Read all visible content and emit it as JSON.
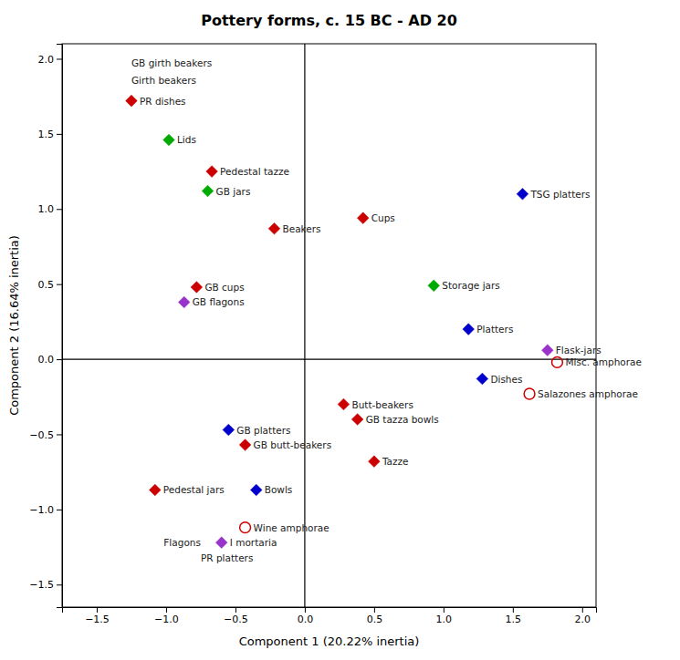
{
  "chart_data": {
    "type": "scatter",
    "title": "Pottery forms, c. 15 BC - AD 20",
    "xlabel": "Component 1 (20.22% inertia)",
    "ylabel": "Component 2 (16.64% inertia)",
    "xlim": [
      -1.75,
      2.1
    ],
    "ylim": [
      -1.65,
      2.1
    ],
    "xticks": [
      {
        "value": -1.5,
        "label": "−1.5"
      },
      {
        "value": -1.0,
        "label": "−1.0"
      },
      {
        "value": -0.5,
        "label": "−0.5"
      },
      {
        "value": 0.0,
        "label": "0.0"
      },
      {
        "value": 0.5,
        "label": "0.5"
      },
      {
        "value": 1.0,
        "label": "1.0"
      },
      {
        "value": 1.5,
        "label": "1.5"
      },
      {
        "value": 2.0,
        "label": "2.0"
      }
    ],
    "yticks": [
      {
        "value": -1.5,
        "label": "−1.5"
      },
      {
        "value": -1.0,
        "label": "−1.0"
      },
      {
        "value": -0.5,
        "label": "−0.5"
      },
      {
        "value": 0.0,
        "label": "0.0"
      },
      {
        "value": 0.5,
        "label": "0.5"
      },
      {
        "value": 1.0,
        "label": "1.0"
      },
      {
        "value": 1.5,
        "label": "1.5"
      },
      {
        "value": 2.0,
        "label": "2.0"
      }
    ],
    "grid": false,
    "points": [
      {
        "label": "GB girth beakers",
        "x": -1.25,
        "y": 1.97,
        "marker": "none"
      },
      {
        "label": "Girth beakers",
        "x": -1.25,
        "y": 1.86,
        "marker": "none"
      },
      {
        "label": "PR dishes",
        "x": -1.25,
        "y": 1.72,
        "color": "#cc0000",
        "marker": "diamond"
      },
      {
        "label": "Lids",
        "x": -0.98,
        "y": 1.46,
        "color": "#00aa00",
        "marker": "diamond"
      },
      {
        "label": "Pedestal tazze",
        "x": -0.67,
        "y": 1.25,
        "color": "#cc0000",
        "marker": "diamond"
      },
      {
        "label": "GB jars",
        "x": -0.7,
        "y": 1.12,
        "color": "#00aa00",
        "marker": "diamond"
      },
      {
        "label": "Beakers",
        "x": -0.22,
        "y": 0.87,
        "color": "#cc0000",
        "marker": "diamond"
      },
      {
        "label": "Cups",
        "x": 0.42,
        "y": 0.94,
        "color": "#cc0000",
        "marker": "diamond"
      },
      {
        "label": "TSG platters",
        "x": 1.57,
        "y": 1.1,
        "color": "#0000cc",
        "marker": "diamond"
      },
      {
        "label": "Storage jars",
        "x": 0.93,
        "y": 0.49,
        "color": "#00aa00",
        "marker": "diamond"
      },
      {
        "label": "GB cups",
        "x": -0.78,
        "y": 0.48,
        "color": "#cc0000",
        "marker": "diamond"
      },
      {
        "label": "GB flagons",
        "x": -0.87,
        "y": 0.38,
        "color": "#9933cc",
        "marker": "diamond"
      },
      {
        "label": "Platters",
        "x": 1.18,
        "y": 0.2,
        "color": "#0000cc",
        "marker": "diamond"
      },
      {
        "label": "Flask-jars",
        "x": 1.75,
        "y": 0.06,
        "color": "#9933cc",
        "marker": "diamond"
      },
      {
        "label": "Misc. amphorae",
        "x": 1.82,
        "y": -0.02,
        "color": "#cc0000",
        "marker": "open_circle"
      },
      {
        "label": "Dishes",
        "x": 1.28,
        "y": -0.13,
        "color": "#0000cc",
        "marker": "diamond"
      },
      {
        "label": "Salazones amphorae",
        "x": 1.62,
        "y": -0.23,
        "color": "#cc0000",
        "marker": "open_circle"
      },
      {
        "label": "Butt-beakers",
        "x": 0.28,
        "y": -0.3,
        "color": "#cc0000",
        "marker": "diamond"
      },
      {
        "label": "GB tazza bowls",
        "x": 0.38,
        "y": -0.4,
        "color": "#cc0000",
        "marker": "diamond"
      },
      {
        "label": "GB platters",
        "x": -0.55,
        "y": -0.47,
        "color": "#0000cc",
        "marker": "diamond"
      },
      {
        "label": "GB butt-beakers",
        "x": -0.43,
        "y": -0.57,
        "color": "#cc0000",
        "marker": "diamond"
      },
      {
        "label": "Tazze",
        "x": 0.5,
        "y": -0.68,
        "color": "#cc0000",
        "marker": "diamond"
      },
      {
        "label": "Pedestal jars",
        "x": -1.08,
        "y": -0.87,
        "color": "#cc0000",
        "marker": "diamond"
      },
      {
        "label": "Bowls",
        "x": -0.35,
        "y": -0.87,
        "color": "#0000cc",
        "marker": "diamond"
      },
      {
        "label": "Wine amphorae",
        "x": -0.43,
        "y": -1.12,
        "color": "#cc0000",
        "marker": "open_circle"
      },
      {
        "label": "Flagons",
        "x": -0.75,
        "y": -1.22,
        "marker": "none"
      },
      {
        "label": "I mortaria",
        "x": -0.6,
        "y": -1.22,
        "color": "#9933cc",
        "marker": "diamond"
      },
      {
        "label": "PR platters",
        "x": -0.75,
        "y": -1.32,
        "marker": "none"
      }
    ]
  }
}
